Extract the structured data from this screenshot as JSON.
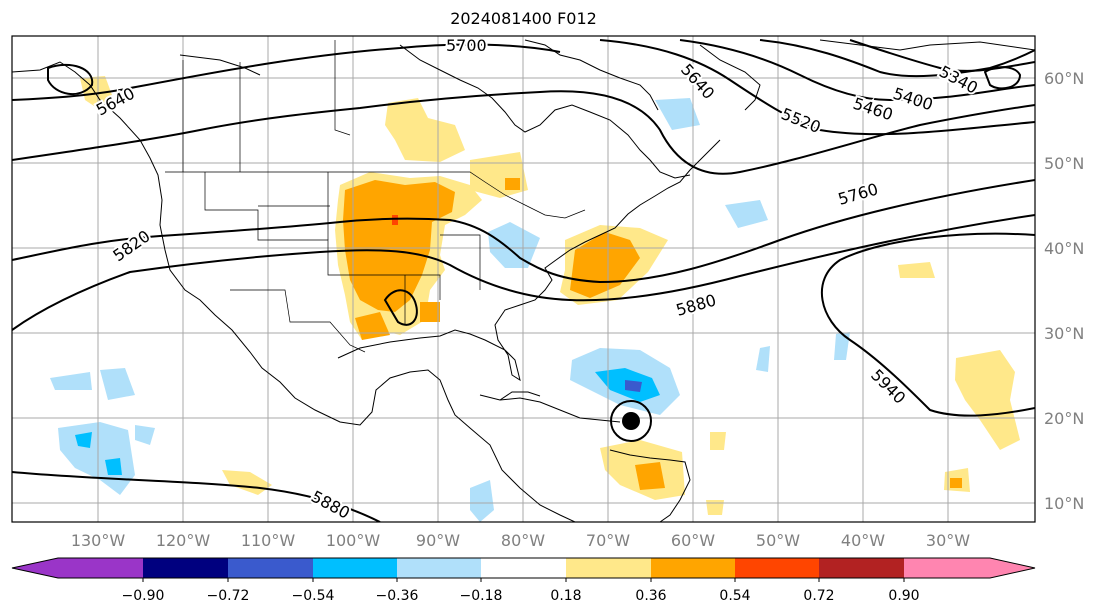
{
  "title": "2024081400 F012",
  "lon_labels": [
    "130°W",
    "120°W",
    "110°W",
    "100°W",
    "90°W",
    "80°W",
    "70°W",
    "60°W",
    "50°W",
    "40°W",
    "30°W"
  ],
  "lat_labels": [
    "60°N",
    "50°N",
    "40°N",
    "30°N",
    "20°N",
    "10°N"
  ],
  "contour_labels": [
    "5700",
    "5640",
    "5640",
    "5520",
    "5460",
    "5400",
    "5340",
    "5760",
    "5820",
    "5880",
    "5880",
    "5940"
  ],
  "colorbar": {
    "ticks": [
      "−0.90",
      "−0.72",
      "−0.54",
      "−0.36",
      "−0.18",
      "0.18",
      "0.36",
      "0.54",
      "0.72",
      "0.90"
    ],
    "colors": [
      "#9a35c8",
      "#00007f",
      "#3a5acd",
      "#00bfff",
      "#b0e0fa",
      "#ffffff",
      "#ffe88a",
      "#ffa500",
      "#ff4500",
      "#b22222",
      "#ff85b0"
    ]
  },
  "shading_colors": {
    "light_orange": "#ffe88a",
    "orange": "#ffa500",
    "red": "#ff4500",
    "light_blue": "#b0e0fa",
    "blue": "#00bfff",
    "mid_blue": "#3a5acd"
  }
}
